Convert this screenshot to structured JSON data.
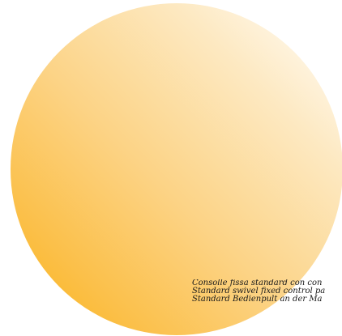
{
  "caption": {
    "lines": [
      "Consolle fissa standard con con",
      "Standard swivel fixed control pa",
      "Standard Bedienpult an der Ma"
    ]
  },
  "colors": {
    "gradient_light": "#ffffff",
    "gradient_dark": "#fab214",
    "text": "#1a1a1a"
  }
}
